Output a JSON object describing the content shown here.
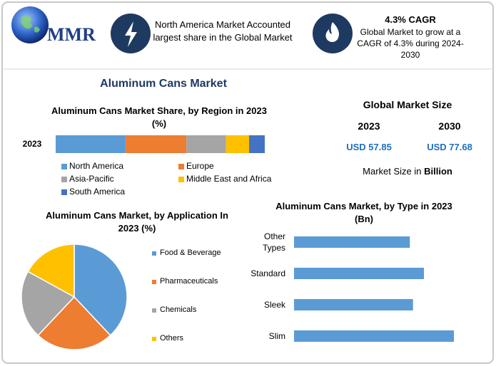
{
  "header": {
    "logo_text": "MMR",
    "region_note": "North America Market Accounted largest share in the Global Market",
    "cagr_title": "4.3% CAGR",
    "cagr_note": "Global Market to grow at a CAGR of 4.3% during 2024-2030"
  },
  "title": "Aluminum Cans Market",
  "market_size": {
    "title": "Global Market Size",
    "years": [
      "2023",
      "2030"
    ],
    "values": [
      "USD 57.85",
      "USD 77.68"
    ],
    "unit_prefix": "Market Size in",
    "unit": "Billion"
  },
  "chart_data": [
    {
      "type": "stacked-bar",
      "title": "Aluminum Cans Market Share, by Region in 2023 (%)",
      "categories": [
        "2023"
      ],
      "series": [
        {
          "name": "North America",
          "color": "#5b9bd5",
          "values": [
            33.5
          ]
        },
        {
          "name": "Europe",
          "color": "#ed7d31",
          "values": [
            29
          ]
        },
        {
          "name": "Asia-Pacific",
          "color": "#a5a5a5",
          "values": [
            19
          ]
        },
        {
          "name": "Middle East and Africa",
          "color": "#ffc000",
          "values": [
            11
          ]
        },
        {
          "name": "South America",
          "color": "#4472c4",
          "values": [
            7.5
          ]
        }
      ]
    },
    {
      "type": "pie",
      "title": "Aluminum Cans Market, by Application In 2023 (%)",
      "categories": [
        "Food & Beverage",
        "Pharmaceuticals",
        "Chemicals",
        "Others"
      ],
      "values": [
        38,
        24,
        21,
        17
      ],
      "colors": [
        "#5b9bd5",
        "#ed7d31",
        "#a5a5a5",
        "#ffc000"
      ]
    },
    {
      "type": "bar",
      "title": "Aluminum Cans Market, by Type in 2023 (Bn)",
      "categories": [
        "Other Types",
        "Standard",
        "Sleek",
        "Slim"
      ],
      "values": [
        12.75,
        14.3,
        13.1,
        17.6
      ],
      "color": "#5b9bd5"
    }
  ]
}
